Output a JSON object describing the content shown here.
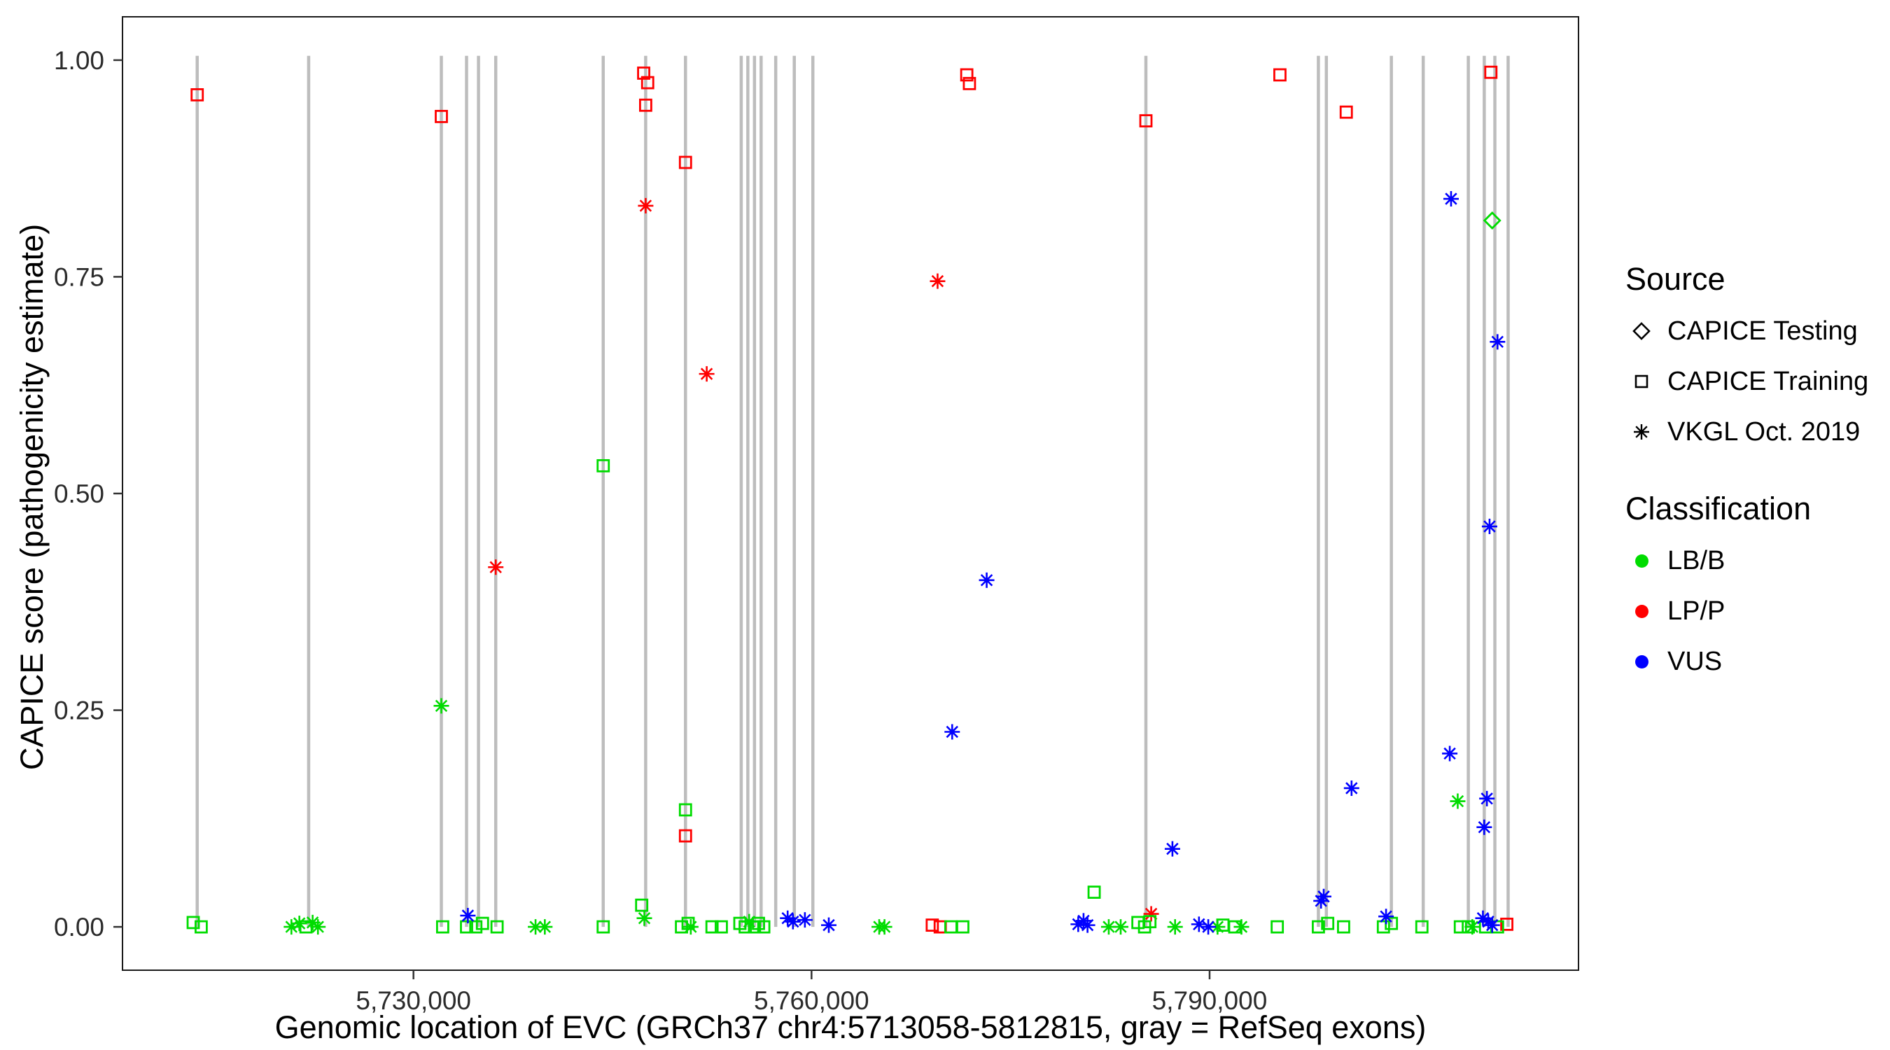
{
  "legend": {
    "source": {
      "title": "Source",
      "items": [
        {
          "label": "CAPICE Testing",
          "shape": "diamond"
        },
        {
          "label": "CAPICE Training",
          "shape": "square"
        },
        {
          "label": "VKGL Oct. 2019",
          "shape": "asterisk"
        }
      ]
    },
    "classification": {
      "title": "Classification",
      "items": [
        {
          "label": "LB/B",
          "color": "#00DC00"
        },
        {
          "label": "LP/P",
          "color": "#FF0000"
        },
        {
          "label": "VUS",
          "color": "#0000FF"
        }
      ]
    }
  },
  "chart_data": {
    "type": "scatter",
    "xlabel": "Genomic location of EVC (GRCh37 chr4:5713058-5812815, gray = RefSeq exons)",
    "ylabel": "CAPICE score (pathogenicity estimate)",
    "x_domain": [
      5708070,
      5817803
    ],
    "y_domain": [
      -0.05,
      1.05
    ],
    "x_ticks": [
      5730000,
      5760000,
      5790000
    ],
    "x_tick_labels": [
      "5,730,000",
      "5,760,000",
      "5,790,000"
    ],
    "y_ticks": [
      0.0,
      0.25,
      0.5,
      0.75,
      1.0
    ],
    "y_tick_labels": [
      "0.00",
      "0.25",
      "0.50",
      "0.75",
      "1.00"
    ],
    "grid": "off",
    "legend_position": "right",
    "exon_color": "#BDBDBD",
    "exon_line_width": 4.5,
    "exons": [
      5713700,
      5722100,
      5732100,
      5734000,
      5734900,
      5736200,
      5744300,
      5747500,
      5750500,
      5754700,
      5755200,
      5755700,
      5756200,
      5757300,
      5758700,
      5760100,
      5785200,
      5798200,
      5798800,
      5803700,
      5806100,
      5809500,
      5810700,
      5811500,
      5812500
    ],
    "colors": {
      "LB/B": "#00DC00",
      "LP/P": "#FF0000",
      "VUS": "#0000FF"
    },
    "source_shapes": {
      "testing": "diamond",
      "training": "square",
      "vkgl": "asterisk"
    },
    "points": [
      {
        "x": 5713700,
        "y": 0.96,
        "s": "training",
        "c": "LP/P"
      },
      {
        "x": 5732100,
        "y": 0.935,
        "s": "training",
        "c": "LP/P"
      },
      {
        "x": 5747350,
        "y": 0.985,
        "s": "training",
        "c": "LP/P"
      },
      {
        "x": 5747650,
        "y": 0.974,
        "s": "training",
        "c": "LP/P"
      },
      {
        "x": 5747500,
        "y": 0.948,
        "s": "training",
        "c": "LP/P"
      },
      {
        "x": 5750500,
        "y": 0.882,
        "s": "training",
        "c": "LP/P"
      },
      {
        "x": 5747500,
        "y": 0.832,
        "s": "vkgl",
        "c": "LP/P"
      },
      {
        "x": 5752100,
        "y": 0.638,
        "s": "vkgl",
        "c": "LP/P"
      },
      {
        "x": 5736200,
        "y": 0.415,
        "s": "vkgl",
        "c": "LP/P"
      },
      {
        "x": 5769500,
        "y": 0.745,
        "s": "vkgl",
        "c": "LP/P"
      },
      {
        "x": 5771700,
        "y": 0.983,
        "s": "training",
        "c": "LP/P"
      },
      {
        "x": 5771900,
        "y": 0.973,
        "s": "training",
        "c": "LP/P"
      },
      {
        "x": 5785200,
        "y": 0.93,
        "s": "training",
        "c": "LP/P"
      },
      {
        "x": 5795300,
        "y": 0.983,
        "s": "training",
        "c": "LP/P"
      },
      {
        "x": 5800300,
        "y": 0.94,
        "s": "training",
        "c": "LP/P"
      },
      {
        "x": 5811200,
        "y": 0.986,
        "s": "training",
        "c": "LP/P"
      },
      {
        "x": 5750500,
        "y": 0.105,
        "s": "training",
        "c": "LP/P"
      },
      {
        "x": 5785600,
        "y": 0.015,
        "s": "vkgl",
        "c": "LP/P"
      },
      {
        "x": 5769100,
        "y": 0.002,
        "s": "training",
        "c": "LP/P"
      },
      {
        "x": 5769700,
        "y": 0.0,
        "s": "training",
        "c": "LP/P"
      },
      {
        "x": 5812400,
        "y": 0.003,
        "s": "training",
        "c": "LP/P"
      },
      {
        "x": 5811300,
        "y": 0.815,
        "s": "testing",
        "c": "LB/B"
      },
      {
        "x": 5744300,
        "y": 0.532,
        "s": "training",
        "c": "LB/B"
      },
      {
        "x": 5732100,
        "y": 0.255,
        "s": "vkgl",
        "c": "LB/B"
      },
      {
        "x": 5808700,
        "y": 0.145,
        "s": "vkgl",
        "c": "LB/B"
      },
      {
        "x": 5750500,
        "y": 0.135,
        "s": "training",
        "c": "LB/B"
      },
      {
        "x": 5781300,
        "y": 0.04,
        "s": "training",
        "c": "LB/B"
      },
      {
        "x": 5747200,
        "y": 0.025,
        "s": "training",
        "c": "LB/B"
      },
      {
        "x": 5747400,
        "y": 0.01,
        "s": "vkgl",
        "c": "LB/B"
      },
      {
        "x": 5713400,
        "y": 0.005,
        "s": "training",
        "c": "LB/B"
      },
      {
        "x": 5714000,
        "y": 0.0,
        "s": "training",
        "c": "LB/B"
      },
      {
        "x": 5720800,
        "y": 0.0,
        "s": "vkgl",
        "c": "LB/B"
      },
      {
        "x": 5721400,
        "y": 0.004,
        "s": "vkgl",
        "c": "LB/B"
      },
      {
        "x": 5721900,
        "y": 0.0,
        "s": "training",
        "c": "LB/B"
      },
      {
        "x": 5722400,
        "y": 0.005,
        "s": "vkgl",
        "c": "LB/B"
      },
      {
        "x": 5722800,
        "y": 0.0,
        "s": "vkgl",
        "c": "LB/B"
      },
      {
        "x": 5732200,
        "y": 0.0,
        "s": "training",
        "c": "LB/B"
      },
      {
        "x": 5734000,
        "y": 0.0,
        "s": "training",
        "c": "LB/B"
      },
      {
        "x": 5734700,
        "y": 0.0,
        "s": "training",
        "c": "LB/B"
      },
      {
        "x": 5735200,
        "y": 0.004,
        "s": "training",
        "c": "LB/B"
      },
      {
        "x": 5736300,
        "y": 0.0,
        "s": "training",
        "c": "LB/B"
      },
      {
        "x": 5739200,
        "y": 0.0,
        "s": "vkgl",
        "c": "LB/B"
      },
      {
        "x": 5739900,
        "y": 0.0,
        "s": "vkgl",
        "c": "LB/B"
      },
      {
        "x": 5744300,
        "y": 0.0,
        "s": "training",
        "c": "LB/B"
      },
      {
        "x": 5750200,
        "y": 0.0,
        "s": "training",
        "c": "LB/B"
      },
      {
        "x": 5750700,
        "y": 0.004,
        "s": "training",
        "c": "LB/B"
      },
      {
        "x": 5750900,
        "y": 0.0,
        "s": "vkgl",
        "c": "LB/B"
      },
      {
        "x": 5752500,
        "y": 0.0,
        "s": "training",
        "c": "LB/B"
      },
      {
        "x": 5753200,
        "y": 0.0,
        "s": "training",
        "c": "LB/B"
      },
      {
        "x": 5754600,
        "y": 0.004,
        "s": "training",
        "c": "LB/B"
      },
      {
        "x": 5755000,
        "y": 0.0,
        "s": "training",
        "c": "LB/B"
      },
      {
        "x": 5755300,
        "y": 0.006,
        "s": "vkgl",
        "c": "LB/B"
      },
      {
        "x": 5755700,
        "y": 0.0,
        "s": "training",
        "c": "LB/B"
      },
      {
        "x": 5756000,
        "y": 0.004,
        "s": "training",
        "c": "LB/B"
      },
      {
        "x": 5756400,
        "y": 0.0,
        "s": "training",
        "c": "LB/B"
      },
      {
        "x": 5765100,
        "y": 0.0,
        "s": "vkgl",
        "c": "LB/B"
      },
      {
        "x": 5765500,
        "y": 0.0,
        "s": "vkgl",
        "c": "LB/B"
      },
      {
        "x": 5770500,
        "y": 0.0,
        "s": "training",
        "c": "LB/B"
      },
      {
        "x": 5771400,
        "y": 0.0,
        "s": "training",
        "c": "LB/B"
      },
      {
        "x": 5782400,
        "y": 0.0,
        "s": "vkgl",
        "c": "LB/B"
      },
      {
        "x": 5783300,
        "y": 0.0,
        "s": "vkgl",
        "c": "LB/B"
      },
      {
        "x": 5784600,
        "y": 0.005,
        "s": "training",
        "c": "LB/B"
      },
      {
        "x": 5785100,
        "y": 0.0,
        "s": "training",
        "c": "LB/B"
      },
      {
        "x": 5785500,
        "y": 0.006,
        "s": "training",
        "c": "LB/B"
      },
      {
        "x": 5787400,
        "y": 0.0,
        "s": "vkgl",
        "c": "LB/B"
      },
      {
        "x": 5790600,
        "y": 0.0,
        "s": "vkgl",
        "c": "LB/B"
      },
      {
        "x": 5791000,
        "y": 0.002,
        "s": "training",
        "c": "LB/B"
      },
      {
        "x": 5791900,
        "y": 0.0,
        "s": "training",
        "c": "LB/B"
      },
      {
        "x": 5792400,
        "y": 0.0,
        "s": "vkgl",
        "c": "LB/B"
      },
      {
        "x": 5795100,
        "y": 0.0,
        "s": "training",
        "c": "LB/B"
      },
      {
        "x": 5798200,
        "y": 0.0,
        "s": "training",
        "c": "LB/B"
      },
      {
        "x": 5798900,
        "y": 0.004,
        "s": "training",
        "c": "LB/B"
      },
      {
        "x": 5800100,
        "y": 0.0,
        "s": "training",
        "c": "LB/B"
      },
      {
        "x": 5803100,
        "y": 0.0,
        "s": "training",
        "c": "LB/B"
      },
      {
        "x": 5803700,
        "y": 0.004,
        "s": "training",
        "c": "LB/B"
      },
      {
        "x": 5806000,
        "y": 0.0,
        "s": "training",
        "c": "LB/B"
      },
      {
        "x": 5808900,
        "y": 0.0,
        "s": "training",
        "c": "LB/B"
      },
      {
        "x": 5809500,
        "y": 0.0,
        "s": "training",
        "c": "LB/B"
      },
      {
        "x": 5809800,
        "y": 0.0,
        "s": "vkgl",
        "c": "LB/B"
      },
      {
        "x": 5810800,
        "y": 0.0,
        "s": "training",
        "c": "LB/B"
      },
      {
        "x": 5811700,
        "y": 0.0,
        "s": "training",
        "c": "LB/B"
      },
      {
        "x": 5808200,
        "y": 0.84,
        "s": "vkgl",
        "c": "VUS"
      },
      {
        "x": 5811700,
        "y": 0.675,
        "s": "vkgl",
        "c": "VUS"
      },
      {
        "x": 5811100,
        "y": 0.462,
        "s": "vkgl",
        "c": "VUS"
      },
      {
        "x": 5773200,
        "y": 0.4,
        "s": "vkgl",
        "c": "VUS"
      },
      {
        "x": 5770600,
        "y": 0.225,
        "s": "vkgl",
        "c": "VUS"
      },
      {
        "x": 5808100,
        "y": 0.2,
        "s": "vkgl",
        "c": "VUS"
      },
      {
        "x": 5800700,
        "y": 0.16,
        "s": "vkgl",
        "c": "VUS"
      },
      {
        "x": 5810900,
        "y": 0.148,
        "s": "vkgl",
        "c": "VUS"
      },
      {
        "x": 5810700,
        "y": 0.115,
        "s": "vkgl",
        "c": "VUS"
      },
      {
        "x": 5787200,
        "y": 0.09,
        "s": "vkgl",
        "c": "VUS"
      },
      {
        "x": 5798600,
        "y": 0.035,
        "s": "vkgl",
        "c": "VUS"
      },
      {
        "x": 5798400,
        "y": 0.03,
        "s": "vkgl",
        "c": "VUS"
      },
      {
        "x": 5734100,
        "y": 0.013,
        "s": "vkgl",
        "c": "VUS"
      },
      {
        "x": 5758200,
        "y": 0.01,
        "s": "vkgl",
        "c": "VUS"
      },
      {
        "x": 5758600,
        "y": 0.006,
        "s": "vkgl",
        "c": "VUS"
      },
      {
        "x": 5759500,
        "y": 0.008,
        "s": "vkgl",
        "c": "VUS"
      },
      {
        "x": 5761300,
        "y": 0.002,
        "s": "vkgl",
        "c": "VUS"
      },
      {
        "x": 5780100,
        "y": 0.003,
        "s": "vkgl",
        "c": "VUS"
      },
      {
        "x": 5780500,
        "y": 0.007,
        "s": "vkgl",
        "c": "VUS"
      },
      {
        "x": 5780800,
        "y": 0.002,
        "s": "vkgl",
        "c": "VUS"
      },
      {
        "x": 5789200,
        "y": 0.003,
        "s": "vkgl",
        "c": "VUS"
      },
      {
        "x": 5789900,
        "y": 0.0,
        "s": "vkgl",
        "c": "VUS"
      },
      {
        "x": 5803300,
        "y": 0.012,
        "s": "vkgl",
        "c": "VUS"
      },
      {
        "x": 5810600,
        "y": 0.01,
        "s": "vkgl",
        "c": "VUS"
      },
      {
        "x": 5811000,
        "y": 0.006,
        "s": "vkgl",
        "c": "VUS"
      },
      {
        "x": 5811300,
        "y": 0.002,
        "s": "vkgl",
        "c": "VUS"
      }
    ]
  }
}
